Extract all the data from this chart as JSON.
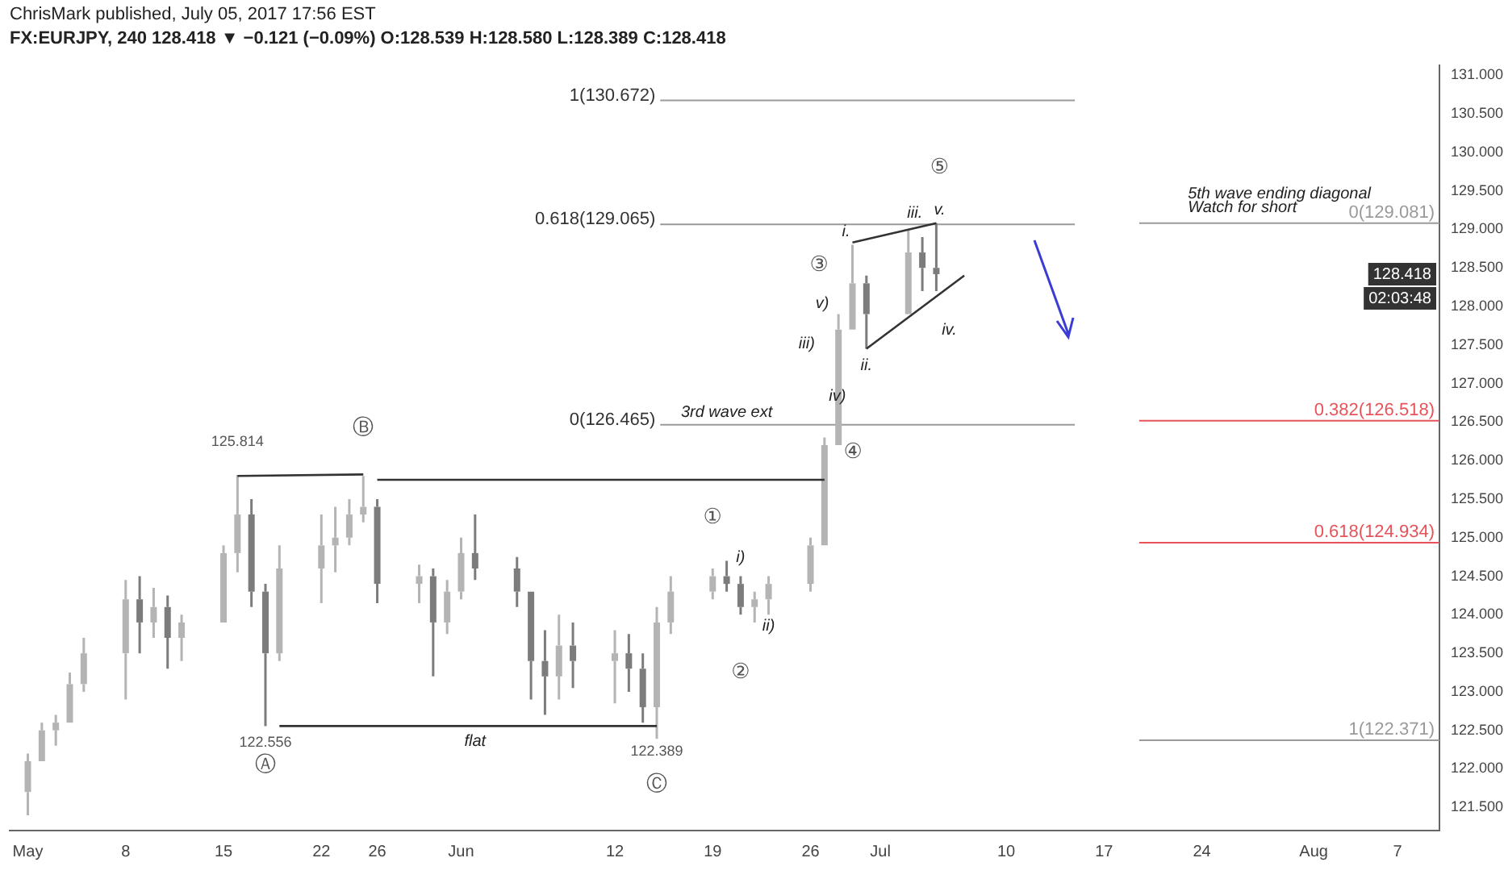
{
  "chart_data": {
    "type": "candlestick",
    "subtitle": "ChrisMark published, July 05, 2017 17:56 EST",
    "title": "FX:EURJPY, 240  128.418 ▼ −0.121 (−0.09%) O:128.539 H:128.580 L:128.389 C:128.418",
    "x": [
      "2017-05-01",
      "2017-05-02",
      "2017-05-03",
      "2017-05-04",
      "2017-05-05",
      "2017-05-08",
      "2017-05-09",
      "2017-05-10",
      "2017-05-11",
      "2017-05-12",
      "2017-05-15",
      "2017-05-16",
      "2017-05-17",
      "2017-05-18",
      "2017-05-19",
      "2017-05-22",
      "2017-05-23",
      "2017-05-24",
      "2017-05-25",
      "2017-05-26",
      "2017-05-29",
      "2017-05-30",
      "2017-05-31",
      "2017-06-01",
      "2017-06-02",
      "2017-06-05",
      "2017-06-06",
      "2017-06-07",
      "2017-06-08",
      "2017-06-09",
      "2017-06-12",
      "2017-06-13",
      "2017-06-14",
      "2017-06-15",
      "2017-06-16",
      "2017-06-19",
      "2017-06-20",
      "2017-06-21",
      "2017-06-22",
      "2017-06-23",
      "2017-06-26",
      "2017-06-27",
      "2017-06-28",
      "2017-06-29",
      "2017-06-30",
      "2017-07-03",
      "2017-07-04",
      "2017-07-05"
    ],
    "ohlc": [
      [
        121.7,
        122.2,
        121.4,
        122.1
      ],
      [
        122.1,
        122.6,
        122.1,
        122.5
      ],
      [
        122.5,
        122.7,
        122.3,
        122.6
      ],
      [
        122.6,
        123.25,
        122.6,
        123.1
      ],
      [
        123.1,
        123.7,
        123.0,
        123.5
      ],
      [
        123.5,
        124.45,
        122.9,
        124.2
      ],
      [
        124.2,
        124.5,
        123.5,
        123.9
      ],
      [
        123.9,
        124.35,
        123.7,
        124.1
      ],
      [
        124.1,
        124.25,
        123.3,
        123.7
      ],
      [
        123.7,
        124.0,
        123.4,
        123.9
      ],
      [
        123.9,
        124.9,
        123.9,
        124.8
      ],
      [
        124.8,
        125.814,
        124.55,
        125.3
      ],
      [
        125.3,
        125.5,
        124.1,
        124.3
      ],
      [
        124.3,
        124.4,
        122.556,
        123.5
      ],
      [
        123.5,
        124.9,
        123.4,
        124.6
      ],
      [
        124.6,
        125.3,
        124.15,
        124.9
      ],
      [
        124.9,
        125.4,
        124.55,
        125.0
      ],
      [
        125.0,
        125.5,
        124.9,
        125.3
      ],
      [
        125.3,
        125.8,
        125.2,
        125.4
      ],
      [
        125.4,
        125.5,
        124.15,
        124.4
      ],
      [
        124.4,
        124.65,
        124.15,
        124.5
      ],
      [
        124.5,
        124.6,
        123.2,
        123.9
      ],
      [
        123.9,
        124.45,
        123.75,
        124.3
      ],
      [
        124.3,
        125.0,
        124.2,
        124.8
      ],
      [
        124.8,
        125.3,
        124.45,
        124.6
      ],
      [
        124.6,
        124.75,
        124.1,
        124.3
      ],
      [
        124.3,
        124.3,
        122.9,
        123.4
      ],
      [
        123.4,
        123.8,
        122.7,
        123.2
      ],
      [
        123.2,
        124.0,
        122.9,
        123.6
      ],
      [
        123.6,
        123.9,
        123.05,
        123.4
      ],
      [
        123.4,
        123.8,
        122.85,
        123.5
      ],
      [
        123.5,
        123.75,
        123.0,
        123.3
      ],
      [
        123.3,
        123.5,
        122.6,
        122.8
      ],
      [
        122.8,
        124.1,
        122.389,
        123.9
      ],
      [
        123.9,
        124.5,
        123.75,
        124.3
      ],
      [
        124.3,
        124.6,
        124.2,
        124.5
      ],
      [
        124.5,
        124.7,
        124.3,
        124.4
      ],
      [
        124.4,
        124.5,
        124.0,
        124.1
      ],
      [
        124.1,
        124.3,
        123.9,
        124.2
      ],
      [
        124.2,
        124.5,
        124.0,
        124.4
      ],
      [
        124.4,
        125.0,
        124.3,
        124.9
      ],
      [
        124.9,
        126.3,
        124.9,
        126.2
      ],
      [
        126.2,
        127.9,
        126.2,
        127.7
      ],
      [
        127.7,
        128.8,
        127.7,
        128.3
      ],
      [
        128.3,
        128.4,
        127.45,
        127.9
      ],
      [
        127.9,
        129.0,
        127.9,
        128.7
      ],
      [
        128.7,
        128.9,
        128.2,
        128.5
      ],
      [
        128.5,
        129.08,
        128.2,
        128.418
      ]
    ],
    "colors": [
      "#b4b4b4",
      "#b4b4b4",
      "#b4b4b4",
      "#b4b4b4",
      "#b4b4b4",
      "#b4b4b4",
      "#7c7c7c",
      "#b4b4b4",
      "#7c7c7c",
      "#b4b4b4",
      "#b4b4b4",
      "#b4b4b4",
      "#7c7c7c",
      "#7c7c7c",
      "#b4b4b4",
      "#b4b4b4",
      "#b4b4b4",
      "#b4b4b4",
      "#b4b4b4",
      "#7c7c7c",
      "#b4b4b4",
      "#7c7c7c",
      "#b4b4b4",
      "#b4b4b4",
      "#7c7c7c",
      "#7c7c7c",
      "#7c7c7c",
      "#7c7c7c",
      "#b4b4b4",
      "#7c7c7c",
      "#b4b4b4",
      "#7c7c7c",
      "#7c7c7c",
      "#b4b4b4",
      "#b4b4b4",
      "#b4b4b4",
      "#7c7c7c",
      "#7c7c7c",
      "#b4b4b4",
      "#b4b4b4",
      "#b4b4b4",
      "#b4b4b4",
      "#b4b4b4",
      "#b4b4b4",
      "#7c7c7c",
      "#b4b4b4",
      "#7c7c7c",
      "#7c7c7c"
    ],
    "series": [
      {
        "type": "line",
        "color": "#333333",
        "x": [
          "2017-05-16",
          "2017-05-25"
        ],
        "values": [
          125.8,
          125.82
        ]
      },
      {
        "type": "line",
        "color": "#333333",
        "x": [
          "2017-05-26",
          "2017-06-27"
        ],
        "values": [
          125.75,
          125.75
        ]
      },
      {
        "type": "line",
        "color": "#333333",
        "x": [
          "2017-05-19",
          "2017-06-15"
        ],
        "values": [
          122.556,
          122.556
        ]
      },
      {
        "type": "line",
        "color": "#333333",
        "x": [
          "2017-06-29",
          "2017-07-05"
        ],
        "values": [
          128.83,
          129.08
        ]
      },
      {
        "type": "line",
        "color": "#333333",
        "x": [
          "2017-06-30",
          "2017-07-07"
        ],
        "values": [
          127.45,
          128.4
        ]
      }
    ],
    "xlim": [
      "2017-04-30",
      "2017-08-10"
    ],
    "xticks": [
      {
        "value": "2017-05-01",
        "label": "May"
      },
      {
        "value": "2017-05-08",
        "label": "8"
      },
      {
        "value": "2017-05-15",
        "label": "15"
      },
      {
        "value": "2017-05-22",
        "label": "22"
      },
      {
        "value": "2017-05-26",
        "label": "26"
      },
      {
        "value": "2017-06-01",
        "label": "Jun"
      },
      {
        "value": "2017-06-12",
        "label": "12"
      },
      {
        "value": "2017-06-19",
        "label": "19"
      },
      {
        "value": "2017-06-26",
        "label": "26"
      },
      {
        "value": "2017-07-01",
        "label": "Jul"
      },
      {
        "value": "2017-07-10",
        "label": "10"
      },
      {
        "value": "2017-07-17",
        "label": "17"
      },
      {
        "value": "2017-07-24",
        "label": "24"
      },
      {
        "value": "2017-08-01",
        "label": "Aug"
      },
      {
        "value": "2017-08-07",
        "label": "7"
      }
    ],
    "ylim": [
      121.2,
      131.13
    ],
    "yticks": [
      {
        "value": 121.5,
        "label": "121.500"
      },
      {
        "value": 122,
        "label": "122.000"
      },
      {
        "value": 122.5,
        "label": "122.500"
      },
      {
        "value": 123,
        "label": "123.000"
      },
      {
        "value": 123.5,
        "label": "123.500"
      },
      {
        "value": 124,
        "label": "124.000"
      },
      {
        "value": 124.5,
        "label": "124.500"
      },
      {
        "value": 125,
        "label": "125.000"
      },
      {
        "value": 125.5,
        "label": "125.500"
      },
      {
        "value": 126,
        "label": "126.000"
      },
      {
        "value": 126.5,
        "label": "126.500"
      },
      {
        "value": 127,
        "label": "127.000"
      },
      {
        "value": 127.5,
        "label": "127.500"
      },
      {
        "value": 128,
        "label": "128.000"
      },
      {
        "value": 128.5,
        "label": "128.500"
      },
      {
        "value": 129,
        "label": "129.000"
      },
      {
        "value": 129.5,
        "label": "129.500"
      },
      {
        "value": 130,
        "label": "130.000"
      },
      {
        "value": 130.5,
        "label": "130.500"
      },
      {
        "value": 131,
        "label": "131.000"
      }
    ],
    "ref_lines": [
      {
        "axis": "y",
        "value": 130.672,
        "label": "1(130.672)",
        "color": "#9a9a9a"
      },
      {
        "axis": "y",
        "value": 129.065,
        "label": "0.618(129.065)",
        "color": "#9a9a9a"
      },
      {
        "axis": "y",
        "value": 126.465,
        "label": "0(126.465)",
        "color": "#9a9a9a"
      },
      {
        "axis": "y",
        "value": 129.081,
        "label": "0(129.081)",
        "color": "#9a9a9a"
      },
      {
        "axis": "y",
        "value": 126.518,
        "label": "0.382(126.518)",
        "color": "#e8535a"
      },
      {
        "axis": "y",
        "value": 124.934,
        "label": "0.618(124.934)",
        "color": "#e8535a"
      },
      {
        "axis": "y",
        "value": 122.371,
        "label": "1(122.371)",
        "color": "#9a9a9a"
      }
    ],
    "annotations": [
      "128.418",
      "02:03:48",
      "125.814",
      "122.556",
      "Ⓐ",
      "Ⓑ",
      "flat",
      "122.389",
      "Ⓒ",
      "①",
      "i)",
      "②",
      "ii)",
      "3rd wave ext",
      "iii)",
      "iv)",
      "④",
      "v)",
      "③",
      "i.",
      "ii.",
      "iii.",
      "iv.",
      "v.",
      "⑤",
      "5th wave ending diagonal",
      "Watch for short"
    ],
    "grid": false,
    "legend": false
  }
}
